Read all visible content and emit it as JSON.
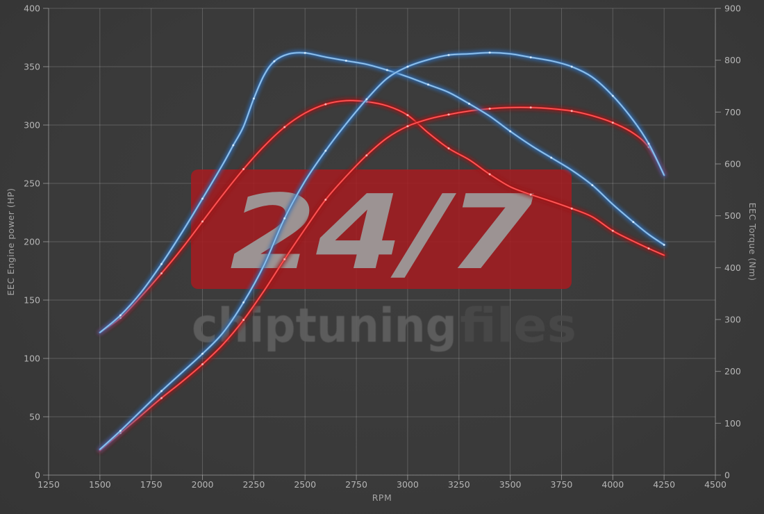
{
  "watermark": {
    "badge_text": "24/7",
    "brand_bold": "chiptuning",
    "brand_light": "files",
    "badge_color": "#a61b20",
    "badge_text_color": "#9d9d9d",
    "brand_bold_color": "#5e5e5e",
    "brand_light_color": "#4a4a4a"
  },
  "colors": {
    "background": "#3a3a3a",
    "grid": "#cfcfcf",
    "spine": "#c8c8c8",
    "tick_label": "#b6b6b6",
    "axis_title": "#a5a5a5",
    "red_glow": "#9c1418",
    "red_core": "#e02327",
    "red_inner": "#ff7a76",
    "red_dot": "#ffc0bd",
    "blue_glow": "#2d6cb4",
    "blue_core": "#5b9bd8",
    "blue_inner": "#b3d4ef",
    "blue_dot": "#ddeefc"
  },
  "chart_data": {
    "type": "line",
    "title": "",
    "grid": true,
    "legend": false,
    "x_axis": {
      "label": "RPM",
      "min": 1250,
      "max": 4500,
      "ticks": [
        1250,
        1500,
        1750,
        2000,
        2250,
        2500,
        2750,
        3000,
        3250,
        3500,
        3750,
        4000,
        4250,
        4500
      ]
    },
    "y_left_axis": {
      "label": "EEC Engine power (HP)",
      "min": 0,
      "max": 400,
      "ticks": [
        0,
        50,
        100,
        150,
        200,
        250,
        300,
        350,
        400
      ]
    },
    "y_right_axis": {
      "label": "EEC Torque (Nm)",
      "min": 0,
      "max": 900,
      "ticks": [
        0,
        100,
        200,
        300,
        400,
        500,
        600,
        700,
        800,
        900
      ]
    },
    "series": [
      {
        "name": "stock-torque",
        "color": "red",
        "axis": "nm",
        "points": [
          [
            1500,
            275
          ],
          [
            1600,
            303
          ],
          [
            1700,
            344
          ],
          [
            1800,
            389
          ],
          [
            1900,
            437
          ],
          [
            2000,
            489
          ],
          [
            2100,
            541
          ],
          [
            2200,
            590
          ],
          [
            2300,
            634
          ],
          [
            2400,
            671
          ],
          [
            2500,
            698
          ],
          [
            2600,
            715
          ],
          [
            2700,
            722
          ],
          [
            2800,
            720
          ],
          [
            2900,
            712
          ],
          [
            3000,
            694
          ],
          [
            3100,
            660
          ],
          [
            3200,
            630
          ],
          [
            3300,
            608
          ],
          [
            3400,
            580
          ],
          [
            3500,
            556
          ],
          [
            3600,
            541
          ],
          [
            3700,
            528
          ],
          [
            3800,
            514
          ],
          [
            3900,
            498
          ],
          [
            4000,
            471
          ],
          [
            4100,
            451
          ],
          [
            4175,
            437
          ],
          [
            4250,
            424
          ]
        ]
      },
      {
        "name": "stock-power",
        "color": "red",
        "axis": "hp",
        "points": [
          [
            1500,
            21
          ],
          [
            1600,
            36
          ],
          [
            1700,
            51
          ],
          [
            1800,
            66
          ],
          [
            1900,
            80
          ],
          [
            2000,
            95
          ],
          [
            2100,
            112
          ],
          [
            2200,
            133
          ],
          [
            2300,
            158
          ],
          [
            2400,
            185
          ],
          [
            2500,
            211
          ],
          [
            2600,
            236
          ],
          [
            2700,
            256
          ],
          [
            2800,
            274
          ],
          [
            2900,
            289
          ],
          [
            3000,
            299
          ],
          [
            3100,
            305
          ],
          [
            3200,
            309
          ],
          [
            3300,
            312
          ],
          [
            3400,
            314
          ],
          [
            3500,
            315
          ],
          [
            3600,
            315
          ],
          [
            3700,
            314
          ],
          [
            3800,
            312
          ],
          [
            3900,
            308
          ],
          [
            4000,
            302
          ],
          [
            4100,
            293
          ],
          [
            4175,
            281
          ],
          [
            4250,
            258
          ]
        ]
      },
      {
        "name": "tuned-torque",
        "color": "blue",
        "axis": "nm",
        "points": [
          [
            1500,
            275
          ],
          [
            1600,
            308
          ],
          [
            1700,
            352
          ],
          [
            1800,
            407
          ],
          [
            1900,
            468
          ],
          [
            2000,
            533
          ],
          [
            2100,
            600
          ],
          [
            2150,
            636
          ],
          [
            2200,
            672
          ],
          [
            2250,
            726
          ],
          [
            2300,
            771
          ],
          [
            2350,
            798
          ],
          [
            2420,
            812
          ],
          [
            2500,
            814
          ],
          [
            2600,
            806
          ],
          [
            2700,
            799
          ],
          [
            2800,
            792
          ],
          [
            2900,
            781
          ],
          [
            3000,
            768
          ],
          [
            3100,
            753
          ],
          [
            3200,
            738
          ],
          [
            3300,
            716
          ],
          [
            3400,
            692
          ],
          [
            3500,
            663
          ],
          [
            3600,
            636
          ],
          [
            3700,
            612
          ],
          [
            3800,
            588
          ],
          [
            3900,
            559
          ],
          [
            4000,
            522
          ],
          [
            4100,
            488
          ],
          [
            4175,
            464
          ],
          [
            4250,
            444
          ]
        ]
      },
      {
        "name": "tuned-power",
        "color": "blue",
        "axis": "hp",
        "points": [
          [
            1500,
            22
          ],
          [
            1600,
            38
          ],
          [
            1700,
            55
          ],
          [
            1800,
            72
          ],
          [
            1900,
            88
          ],
          [
            2000,
            104
          ],
          [
            2100,
            122
          ],
          [
            2200,
            148
          ],
          [
            2300,
            180
          ],
          [
            2400,
            220
          ],
          [
            2500,
            252
          ],
          [
            2600,
            278
          ],
          [
            2700,
            301
          ],
          [
            2800,
            322
          ],
          [
            2900,
            340
          ],
          [
            3000,
            350
          ],
          [
            3100,
            356
          ],
          [
            3200,
            360
          ],
          [
            3300,
            361
          ],
          [
            3400,
            362
          ],
          [
            3500,
            361
          ],
          [
            3600,
            358
          ],
          [
            3700,
            355
          ],
          [
            3800,
            350
          ],
          [
            3900,
            341
          ],
          [
            4000,
            325
          ],
          [
            4100,
            304
          ],
          [
            4175,
            284
          ],
          [
            4250,
            257
          ]
        ]
      }
    ]
  }
}
